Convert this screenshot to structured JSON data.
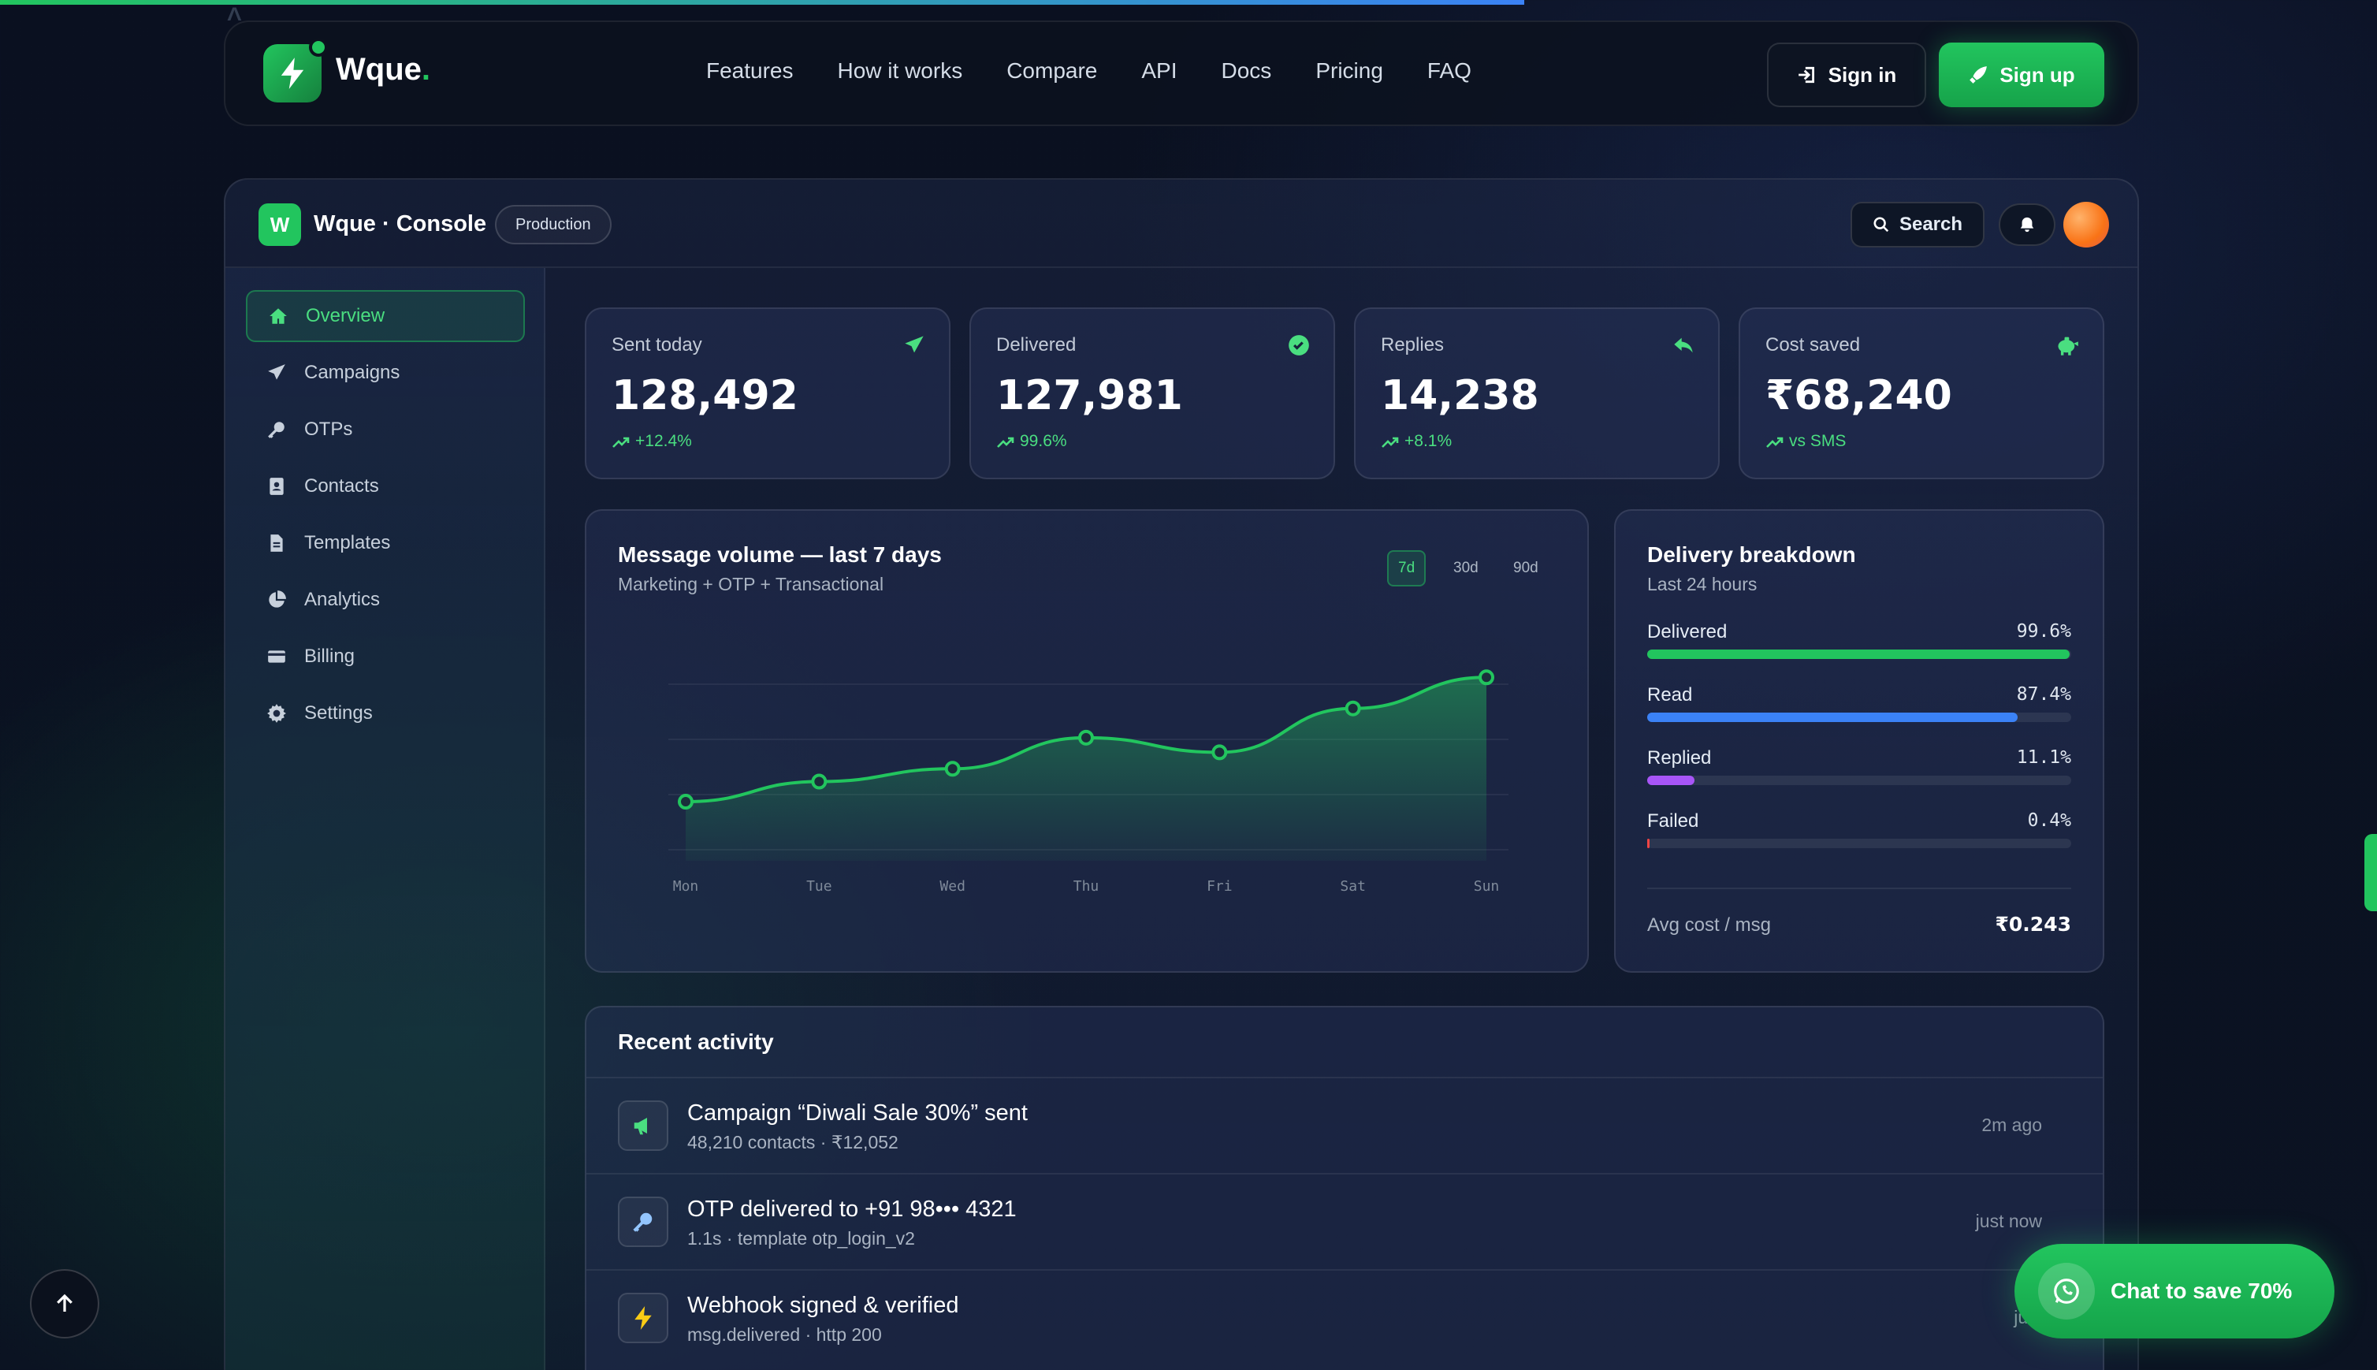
{
  "ghost_text": "A",
  "nav": {
    "brand": "Wque",
    "brand_dot": ".",
    "links": [
      "Features",
      "How it works",
      "Compare",
      "API",
      "Docs",
      "Pricing",
      "FAQ"
    ],
    "signin": "Sign in",
    "signup": "Sign up"
  },
  "console": {
    "logo_letter": "W",
    "title": "Wque · Console",
    "env_badge": "Production",
    "search": "Search",
    "sidebar": [
      "Overview",
      "Campaigns",
      "OTPs",
      "Contacts",
      "Templates",
      "Analytics",
      "Billing",
      "Settings"
    ],
    "active_item": "Overview",
    "stats": [
      {
        "label": "Sent today",
        "value": "128,492",
        "trend": "+12.4%",
        "icon": "paper-plane-icon"
      },
      {
        "label": "Delivered",
        "value": "127,981",
        "trend": "99.6%",
        "icon": "check-circle-icon"
      },
      {
        "label": "Replies",
        "value": "14,238",
        "trend": "+8.1%",
        "icon": "reply-icon"
      },
      {
        "label": "Cost saved",
        "value": "₹68,240",
        "trend": "vs SMS",
        "icon": "piggy-bank-icon"
      }
    ],
    "volume": {
      "title": "Message volume — last 7 days",
      "subtitle": "Marketing + OTP + Transactional",
      "ranges": [
        "7d",
        "30d",
        "90d"
      ],
      "active_range": "7d"
    },
    "breakdown": {
      "title": "Delivery breakdown",
      "subtitle": "Last 24 hours",
      "rows": [
        {
          "label": "Delivered",
          "pct": "99.6%",
          "value": 99.6,
          "color": "#22c55e"
        },
        {
          "label": "Read",
          "pct": "87.4%",
          "value": 87.4,
          "color": "#3b82f6"
        },
        {
          "label": "Replied",
          "pct": "11.1%",
          "value": 11.1,
          "color": "#a855f7"
        },
        {
          "label": "Failed",
          "pct": "0.4%",
          "value": 0.4,
          "color": "#ef4444"
        }
      ],
      "avg_label": "Avg cost / msg",
      "avg_value": "₹0.243"
    },
    "activity": {
      "title": "Recent activity",
      "items": [
        {
          "main": "Campaign “Diwali Sale 30%” sent",
          "sub": "48,210 contacts · ₹12,052",
          "time": "2m ago",
          "icon": "megaphone-icon"
        },
        {
          "main": "OTP delivered to +91 98••• 4321",
          "sub": "1.1s · template otp_login_v2",
          "time": "just now",
          "icon": "key-icon"
        },
        {
          "main": "Webhook signed & verified",
          "sub": "msg.delivered · http 200",
          "time": "just",
          "icon": "bolt-icon"
        }
      ]
    }
  },
  "chat_button": "Chat to save 70%",
  "chart_data": {
    "type": "area",
    "categories": [
      "Mon",
      "Tue",
      "Wed",
      "Thu",
      "Fri",
      "Sat",
      "Sun"
    ],
    "series": [
      {
        "values": [
          0.28,
          0.39,
          0.46,
          0.63,
          0.55,
          0.79,
          0.96
        ]
      }
    ],
    "title": "Message volume — last 7 days",
    "subtitle": "Marketing + OTP + Transactional",
    "xlabel": "",
    "ylabel": "",
    "grid": true,
    "color": "#22c55e"
  }
}
